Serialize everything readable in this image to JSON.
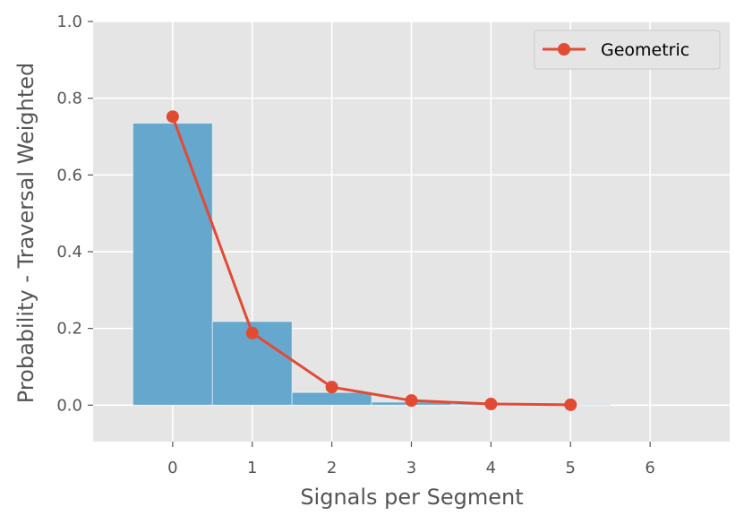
{
  "chart_data": {
    "type": "bar",
    "title": "",
    "xlabel": "Signals per Segment",
    "ylabel": "Probability - Traversal Weighted",
    "xlim": [
      -1,
      7
    ],
    "ylim": [
      -0.095,
      1.0
    ],
    "xticks": [
      0,
      1,
      2,
      3,
      4,
      5,
      6
    ],
    "yticks": [
      0.0,
      0.2,
      0.4,
      0.6,
      0.8,
      1.0
    ],
    "xtick_labels": [
      "0",
      "1",
      "2",
      "3",
      "4",
      "5",
      "6"
    ],
    "ytick_labels": [
      "0.0",
      "0.2",
      "0.4",
      "0.6",
      "0.8",
      "1.0"
    ],
    "grid": true,
    "legend_position": "top-right",
    "histogram": {
      "bin_edges": [
        -0.5,
        0.5,
        1.5,
        2.5,
        3.5,
        4.5,
        5.5
      ],
      "values": [
        0.735,
        0.218,
        0.033,
        0.008,
        0.003,
        0.002
      ],
      "color": "#5fa3cb"
    },
    "series": [
      {
        "name": "Geometric",
        "type": "line",
        "marker": "circle",
        "color": "#e24a33",
        "x": [
          0,
          1,
          2,
          3,
          4,
          5
        ],
        "values": [
          0.752,
          0.188,
          0.047,
          0.012,
          0.003,
          0.001
        ]
      }
    ],
    "colors": {
      "plot_background": "#e5e5e5",
      "grid": "#ffffff",
      "text": "#555555"
    }
  }
}
